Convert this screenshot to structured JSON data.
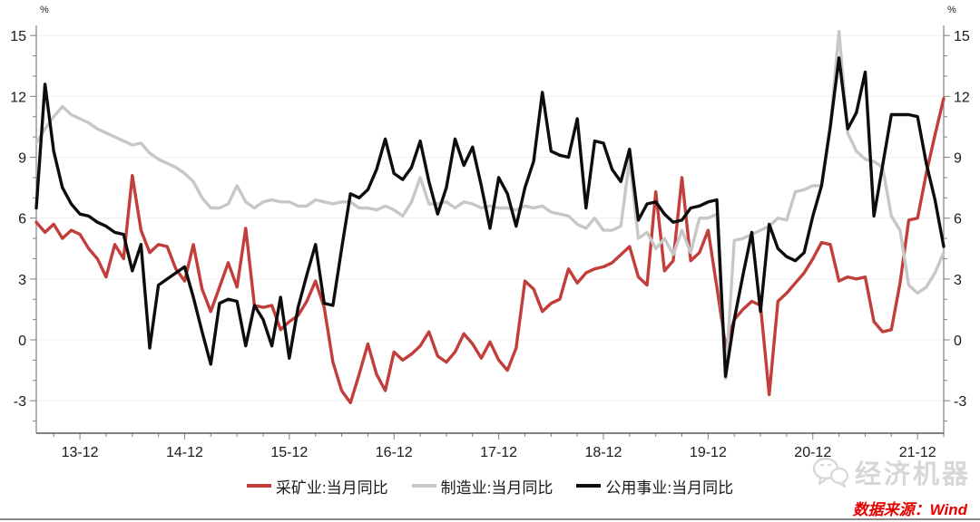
{
  "chart": {
    "y_unit_left": "%",
    "y_unit_right": "%"
  },
  "chart_data": {
    "type": "line",
    "title": "",
    "x_start": "2013-07",
    "x_frequency": "monthly",
    "n_points": 105,
    "x_tick_labels": [
      "13-12",
      "14-12",
      "15-12",
      "16-12",
      "17-12",
      "18-12",
      "19-12",
      "20-12",
      "21-12"
    ],
    "x_tick_indices": [
      5,
      17,
      29,
      41,
      53,
      65,
      77,
      89,
      101
    ],
    "ylim": [
      -4.6,
      15.5
    ],
    "yticks": [
      -3,
      0,
      3,
      6,
      9,
      12,
      15
    ],
    "grid": "horizontal",
    "legend_position": "bottom-center",
    "series": [
      {
        "key": "mining",
        "name": "采矿业:当月同比",
        "color": "#C23E3A",
        "values": [
          5.8,
          5.3,
          5.7,
          5.0,
          5.4,
          5.2,
          4.5,
          4.0,
          3.1,
          4.7,
          4.0,
          8.1,
          5.4,
          4.3,
          4.7,
          4.6,
          3.5,
          2.9,
          4.7,
          2.5,
          1.4,
          2.6,
          3.8,
          2.6,
          5.5,
          1.7,
          1.6,
          1.7,
          0.5,
          0.9,
          1.2,
          1.9,
          2.9,
          1.6,
          -1.1,
          -2.5,
          -3.1,
          -1.7,
          -0.2,
          -1.7,
          -2.5,
          -0.6,
          -1.0,
          -0.7,
          -0.3,
          0.4,
          -0.8,
          -1.1,
          -0.6,
          0.3,
          -0.2,
          -0.9,
          -0.1,
          -1.0,
          -1.5,
          -0.4,
          2.9,
          2.5,
          1.4,
          1.8,
          2.0,
          3.5,
          2.8,
          3.3,
          3.5,
          3.6,
          3.8,
          4.2,
          4.6,
          3.1,
          2.7,
          7.3,
          3.4,
          3.9,
          8.0,
          3.9,
          4.3,
          5.4,
          2.6,
          -0.3,
          1.0,
          1.5,
          1.9,
          1.7,
          -2.7,
          1.9,
          2.3,
          2.8,
          3.3,
          4.0,
          4.8,
          4.7,
          2.9,
          3.1,
          3.0,
          3.1,
          0.9,
          0.4,
          0.5,
          2.8,
          5.9,
          6.0,
          8.2,
          10.1,
          11.9
        ]
      },
      {
        "key": "manufacturing",
        "name": "制造业:当月同比",
        "color": "#C7C7C7",
        "values": [
          9.7,
          10.4,
          11.0,
          11.5,
          11.1,
          10.9,
          10.7,
          10.4,
          10.2,
          10.0,
          9.8,
          9.6,
          9.7,
          9.2,
          8.9,
          8.7,
          8.5,
          8.2,
          7.8,
          7.0,
          6.5,
          6.5,
          6.7,
          7.6,
          6.8,
          6.5,
          6.8,
          6.9,
          6.8,
          6.8,
          6.6,
          6.6,
          6.9,
          6.8,
          6.7,
          6.8,
          6.8,
          6.5,
          6.5,
          6.4,
          6.6,
          6.4,
          6.1,
          6.8,
          8.0,
          6.7,
          6.7,
          6.8,
          6.5,
          6.8,
          6.7,
          6.5,
          6.6,
          6.5,
          6.5,
          6.4,
          6.6,
          6.5,
          6.6,
          6.3,
          6.2,
          6.1,
          5.7,
          5.5,
          6.0,
          5.4,
          5.4,
          5.6,
          8.9,
          5.0,
          5.3,
          4.5,
          5.0,
          4.2,
          5.4,
          4.3,
          6.0,
          6.0,
          6.2,
          -1.9,
          4.9,
          5.0,
          5.2,
          5.4,
          5.6,
          6.0,
          5.9,
          7.3,
          7.4,
          7.6,
          7.6,
          10.5,
          15.2,
          10.2,
          9.3,
          8.9,
          8.8,
          8.5,
          6.1,
          5.4,
          2.7,
          2.3,
          2.6,
          3.3,
          4.3
        ]
      },
      {
        "key": "utilities",
        "name": "公用事业:当月同比",
        "color": "#0D0D0D",
        "values": [
          6.5,
          12.6,
          9.3,
          7.5,
          6.7,
          6.2,
          6.1,
          5.8,
          5.6,
          5.3,
          5.2,
          3.4,
          4.7,
          -0.4,
          2.7,
          3.0,
          3.3,
          3.6,
          2.1,
          0.4,
          -1.2,
          1.8,
          2.0,
          1.9,
          -0.3,
          1.7,
          1.0,
          -0.3,
          2.1,
          -0.9,
          1.6,
          3.2,
          4.7,
          1.8,
          1.7,
          4.5,
          7.2,
          7.0,
          7.4,
          8.4,
          9.9,
          8.2,
          7.9,
          8.5,
          9.8,
          7.8,
          6.2,
          7.5,
          9.9,
          8.6,
          9.5,
          7.6,
          5.5,
          8.0,
          7.2,
          5.6,
          7.5,
          8.8,
          12.2,
          9.3,
          9.1,
          9.0,
          10.9,
          6.5,
          9.8,
          9.7,
          8.4,
          7.8,
          9.4,
          5.9,
          6.7,
          6.8,
          6.2,
          5.8,
          5.9,
          6.5,
          6.6,
          6.8,
          6.9,
          -1.8,
          1.0,
          3.2,
          5.3,
          1.4,
          5.7,
          4.5,
          4.1,
          3.9,
          4.3,
          6.1,
          7.6,
          10.5,
          13.9,
          10.4,
          11.2,
          13.2,
          6.1,
          8.6,
          11.1,
          11.1,
          11.1,
          11.0,
          8.7,
          6.9,
          4.6
        ]
      }
    ]
  },
  "footer": {
    "watermark": "经济机器",
    "watermark_icon": "wechat-icon",
    "source": "数据来源：Wind"
  },
  "colors": {
    "mining": "#C23E3A",
    "manufacturing": "#C7C7C7",
    "utilities": "#0D0D0D",
    "source_text": "#E60000",
    "grid": "#EFEFEF",
    "axis": "#808080",
    "tick_label": "#1A1A1A",
    "watermark": "#D7D7D7",
    "bottom_bar": "#8A8A8A"
  }
}
